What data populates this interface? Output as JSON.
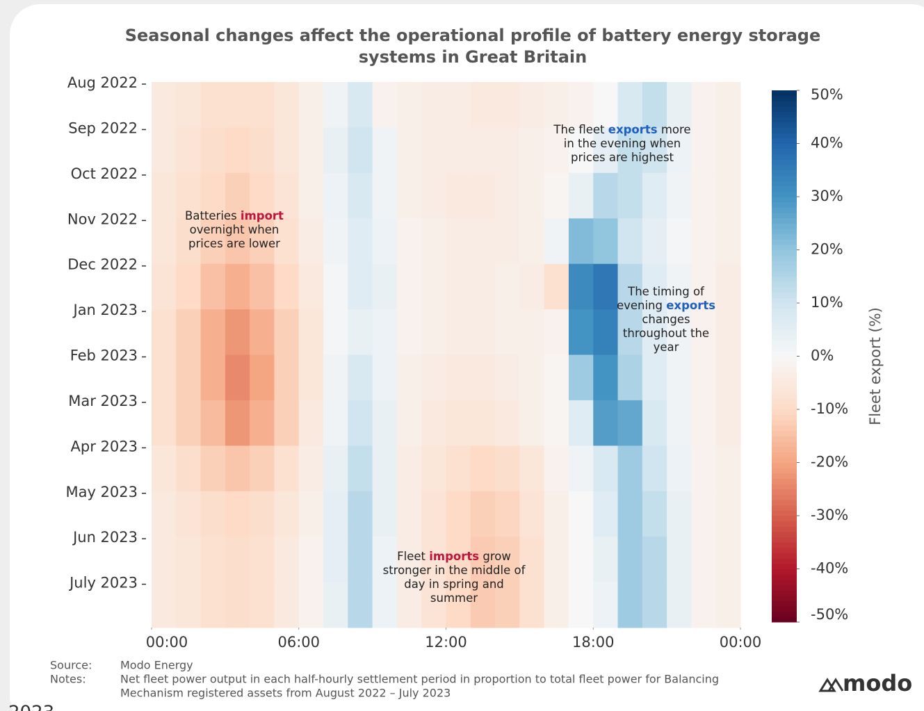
{
  "chart_data": {
    "type": "heatmap",
    "title": [
      "Seasonal changes affect the operational profile of battery energy storage",
      "systems in Great Britain"
    ],
    "categories": [
      "Aug 2022",
      "Sep 2022",
      "Oct 2022",
      "Nov 2022",
      "Dec 2022",
      "Jan 2023",
      "Feb 2023",
      "Mar 2023",
      "Apr 2023",
      "May 2023",
      "Jun 2023",
      "July 2023"
    ],
    "xlim": [
      0,
      24
    ],
    "xticks": [
      {
        "value": 0,
        "label": "00:00"
      },
      {
        "value": 6,
        "label": "06:00"
      },
      {
        "value": 12,
        "label": "12:00"
      },
      {
        "value": 18,
        "label": "18:00"
      },
      {
        "value": 24,
        "label": "00:00"
      }
    ],
    "values": [
      [
        -5,
        -6,
        -8,
        -8,
        -8,
        -6,
        -3,
        2,
        8,
        -2,
        -3,
        -4,
        -4,
        -5,
        -5,
        -4,
        -3,
        -2,
        0,
        8,
        12,
        4,
        -2,
        -3
      ],
      [
        -5,
        -7,
        -9,
        -10,
        -9,
        -6,
        -3,
        4,
        10,
        2,
        -3,
        -4,
        -4,
        -4,
        -4,
        -3,
        -2,
        0,
        5,
        12,
        10,
        3,
        -2,
        -3
      ],
      [
        -6,
        -8,
        -10,
        -12,
        -10,
        -7,
        -3,
        3,
        8,
        2,
        -3,
        -4,
        -5,
        -5,
        -4,
        -3,
        -1,
        4,
        14,
        12,
        6,
        2,
        -2,
        -3
      ],
      [
        -6,
        -9,
        -12,
        -14,
        -12,
        -8,
        -4,
        2,
        6,
        3,
        -2,
        -3,
        -4,
        -4,
        -4,
        -3,
        2,
        22,
        20,
        10,
        5,
        1,
        -2,
        -3
      ],
      [
        -7,
        -10,
        -15,
        -18,
        -15,
        -10,
        -5,
        1,
        6,
        4,
        -2,
        -3,
        -4,
        -4,
        -3,
        -4,
        -8,
        32,
        36,
        14,
        6,
        2,
        -2,
        -4
      ],
      [
        -8,
        -12,
        -18,
        -22,
        -18,
        -12,
        -6,
        1,
        4,
        3,
        -2,
        -3,
        -4,
        -4,
        -3,
        -3,
        -2,
        30,
        34,
        14,
        6,
        2,
        -2,
        -4
      ],
      [
        -8,
        -12,
        -18,
        -24,
        -20,
        -12,
        -6,
        2,
        8,
        3,
        -3,
        -4,
        -5,
        -5,
        -4,
        -3,
        -1,
        18,
        30,
        16,
        6,
        2,
        -2,
        -4
      ],
      [
        -8,
        -12,
        -16,
        -22,
        -18,
        -12,
        -5,
        2,
        10,
        4,
        -3,
        -5,
        -6,
        -6,
        -5,
        -3,
        -1,
        6,
        28,
        26,
        8,
        2,
        -2,
        -4
      ],
      [
        -6,
        -9,
        -12,
        -14,
        -12,
        -8,
        -4,
        4,
        12,
        4,
        -4,
        -6,
        -8,
        -10,
        -9,
        -6,
        -2,
        2,
        8,
        18,
        10,
        3,
        -2,
        -3
      ],
      [
        -5,
        -7,
        -9,
        -10,
        -9,
        -6,
        -3,
        5,
        14,
        4,
        -4,
        -7,
        -10,
        -12,
        -11,
        -7,
        -3,
        0,
        6,
        18,
        12,
        4,
        -2,
        -3
      ],
      [
        -5,
        -6,
        -8,
        -9,
        -8,
        -5,
        -2,
        5,
        14,
        3,
        -4,
        -7,
        -10,
        -13,
        -12,
        -8,
        -3,
        0,
        4,
        18,
        14,
        4,
        -2,
        -3
      ],
      [
        -5,
        -6,
        -8,
        -9,
        -8,
        -5,
        -2,
        4,
        14,
        3,
        -4,
        -7,
        -10,
        -13,
        -12,
        -8,
        -3,
        0,
        3,
        18,
        14,
        4,
        -2,
        -3
      ]
    ],
    "zlim": [
      -50,
      50
    ],
    "zticks": [
      {
        "value": 50,
        "label": "50%"
      },
      {
        "value": 40,
        "label": "40%"
      },
      {
        "value": 30,
        "label": "30%"
      },
      {
        "value": 20,
        "label": "20%"
      },
      {
        "value": 10,
        "label": "10%"
      },
      {
        "value": 0,
        "label": "0%"
      },
      {
        "value": -10,
        "label": "-10%"
      },
      {
        "value": -20,
        "label": "-20%"
      },
      {
        "value": -30,
        "label": "-30%"
      },
      {
        "value": -40,
        "label": "-40%"
      },
      {
        "value": -50,
        "label": "-50%"
      }
    ],
    "colorbar_label": "Fleet export (%)",
    "colors": [
      "#67001f",
      "#b2182b",
      "#d6604d",
      "#f4a582",
      "#fddbc7",
      "#f7f7f7",
      "#d1e5f0",
      "#92c5de",
      "#4393c3",
      "#2166ac",
      "#053061"
    ],
    "annotations": [
      {
        "lines": [
          [
            "Batteries",
            "import"
          ],
          [
            "overnight when"
          ],
          [
            "prices are lower"
          ]
        ],
        "emphasis_color": "#c0143c"
      },
      {
        "lines": [
          [
            "The fleet",
            "exports",
            "more"
          ],
          [
            "in the evening when"
          ],
          [
            "prices are highest"
          ]
        ],
        "emphasis_color": "#1f5fbf"
      },
      {
        "lines": [
          [
            "The timing of"
          ],
          [
            "evening",
            "exports"
          ],
          [
            "changes"
          ],
          [
            "throughout the"
          ],
          [
            "year"
          ]
        ],
        "emphasis_color": "#1f5fbf"
      },
      {
        "lines": [
          [
            "Fleet",
            "imports",
            "grow"
          ],
          [
            "stronger in the middle of"
          ],
          [
            "day in spring and"
          ],
          [
            "summer"
          ]
        ],
        "emphasis_color": "#c0143c"
      }
    ]
  },
  "footer": {
    "source_label": "Source:",
    "source": "Modo Energy",
    "notes_label": "Notes:",
    "notes": [
      "Net fleet power output in each half-hourly settlement period in proportion to total fleet power for Balancing",
      "Mechanism registered assets from August 2022 – July 2023"
    ],
    "logo": "modo",
    "cropped_text": "2023"
  }
}
